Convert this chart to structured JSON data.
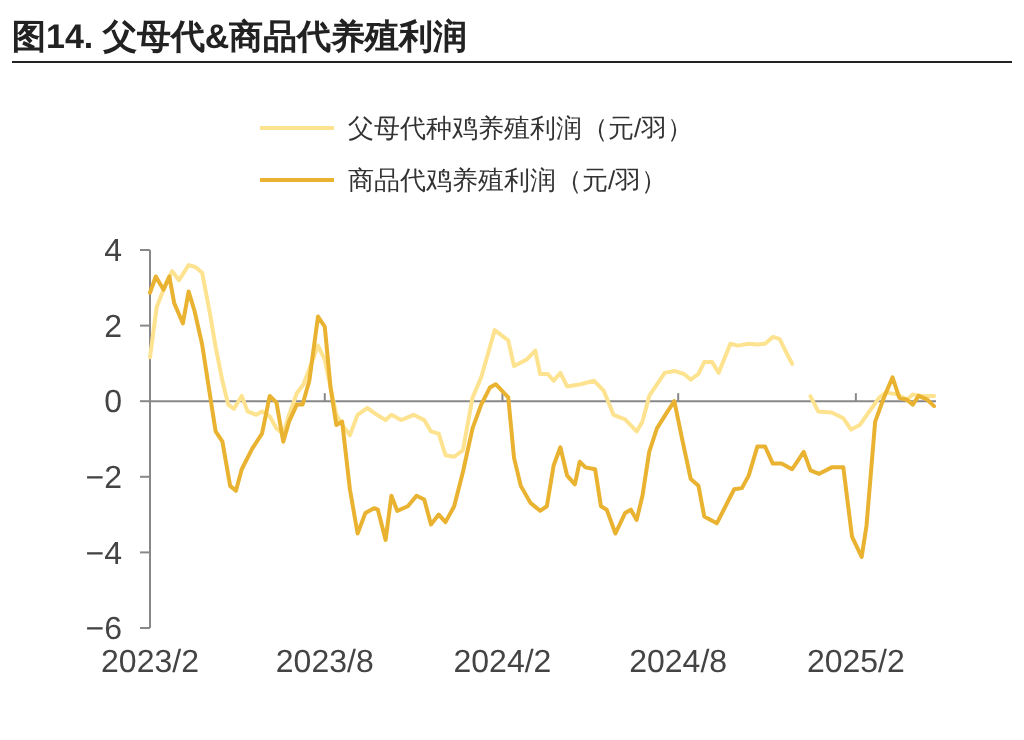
{
  "chart_data": {
    "type": "line",
    "title": "图14. 父母代&商品代养殖利润",
    "legend": "top",
    "xlim": [
      "2023-02-01",
      "2025-04-25"
    ],
    "xticks": [
      {
        "value": "2023-02-01",
        "label": "2023/2"
      },
      {
        "value": "2023-08-01",
        "label": "2023/8"
      },
      {
        "value": "2024-02-01",
        "label": "2024/2"
      },
      {
        "value": "2024-08-01",
        "label": "2024/8"
      },
      {
        "value": "2025-02-01",
        "label": "2025/2"
      }
    ],
    "ylim": [
      -6,
      4
    ],
    "yticks": [
      -6,
      -4,
      -2,
      0,
      2,
      4
    ],
    "series": [
      {
        "name": "父母代种鸡养殖利润（元/羽）",
        "color": "#fde38f",
        "x": [
          "2023-02-01",
          "2023-02-08",
          "2023-02-18",
          "2023-02-24",
          "2023-03-03",
          "2023-03-13",
          "2023-03-20",
          "2023-03-27",
          "2023-04-04",
          "2023-04-10",
          "2023-04-17",
          "2023-04-23",
          "2023-04-29",
          "2023-05-07",
          "2023-05-13",
          "2023-05-22",
          "2023-05-28",
          "2023-06-05",
          "2023-06-12",
          "2023-06-19",
          "2023-06-25",
          "2023-07-03",
          "2023-07-10",
          "2023-07-18",
          "2023-07-25",
          "2023-08-01",
          "2023-08-07",
          "2023-08-13",
          "2023-08-19",
          "2023-08-27",
          "2023-09-04",
          "2023-09-14",
          "2023-09-24",
          "2023-10-03",
          "2023-10-09",
          "2023-10-19",
          "2023-11-01",
          "2023-11-12",
          "2023-11-19",
          "2023-11-27",
          "2023-12-04",
          "2023-12-13",
          "2023-12-22",
          "2024-01-01",
          "2024-01-10",
          "2024-01-24",
          "2024-02-07",
          "2024-02-13",
          "2024-02-26",
          "2024-03-06",
          "2024-03-11",
          "2024-03-19",
          "2024-03-25",
          "2024-04-01",
          "2024-04-08",
          "2024-04-22",
          "2024-05-06",
          "2024-05-16",
          "2024-05-26",
          "2024-06-07",
          "2024-06-19",
          "2024-06-25",
          "2024-07-02",
          "2024-07-18",
          "2024-07-28",
          "2024-08-07",
          "2024-08-14",
          "2024-08-22",
          "2024-08-28",
          "2024-09-05",
          "2024-09-12",
          "2024-09-24",
          "2024-10-02",
          "2024-10-13",
          "2024-10-22",
          "2024-10-30",
          "2024-11-07",
          "2024-11-14",
          "2024-11-20",
          "2024-11-27",
          "2024-12-08",
          "2024-12-16",
          "2024-12-24",
          "2025-01-07",
          "2025-01-19",
          "2025-01-27",
          "2025-02-05",
          "2025-02-15",
          "2025-02-25",
          "2025-03-04",
          "2025-03-16",
          "2025-03-26",
          "2025-04-01",
          "2025-04-10",
          "2025-04-23"
        ],
        "values": [
          1.16,
          2.5,
          3.14,
          3.44,
          3.2,
          3.6,
          3.55,
          3.4,
          2.33,
          1.43,
          0.54,
          -0.09,
          -0.2,
          0.14,
          -0.27,
          -0.36,
          -0.27,
          -0.4,
          -0.72,
          -0.86,
          -0.36,
          0.21,
          0.45,
          0.99,
          1.47,
          1.1,
          0.36,
          -0.36,
          -0.63,
          -0.9,
          -0.36,
          -0.18,
          -0.36,
          -0.5,
          -0.36,
          -0.5,
          -0.36,
          -0.5,
          -0.8,
          -0.86,
          -1.43,
          -1.47,
          -1.3,
          0.09,
          0.63,
          1.88,
          1.61,
          0.93,
          1.1,
          1.34,
          0.72,
          0.72,
          0.54,
          0.75,
          0.39,
          0.45,
          0.54,
          0.27,
          -0.36,
          -0.48,
          -0.8,
          -0.54,
          0.14,
          0.75,
          0.8,
          0.72,
          0.57,
          0.72,
          1.04,
          1.04,
          0.75,
          1.52,
          1.47,
          1.52,
          1.5,
          1.52,
          1.7,
          1.65,
          1.34,
          0.99,
          null,
          0.13,
          -0.27,
          -0.3,
          -0.45,
          -0.75,
          -0.63,
          -0.27,
          0.09,
          0.23,
          0.18,
          0.04,
          0.18,
          0.14,
          0.14
        ]
      },
      {
        "name": "商品代鸡养殖利润（元/羽）",
        "color": "#e9b230",
        "x": [
          "2023-02-01",
          "2023-02-07",
          "2023-02-15",
          "2023-02-21",
          "2023-02-26",
          "2023-03-07",
          "2023-03-13",
          "2023-03-19",
          "2023-03-27",
          "2023-04-04",
          "2023-04-10",
          "2023-04-17",
          "2023-04-25",
          "2023-05-01",
          "2023-05-07",
          "2023-05-18",
          "2023-05-28",
          "2023-06-05",
          "2023-06-12",
          "2023-06-19",
          "2023-06-25",
          "2023-07-03",
          "2023-07-09",
          "2023-07-16",
          "2023-07-25",
          "2023-08-01",
          "2023-08-07",
          "2023-08-13",
          "2023-08-19",
          "2023-08-27",
          "2023-09-04",
          "2023-09-12",
          "2023-09-21",
          "2023-09-25",
          "2023-10-03",
          "2023-10-09",
          "2023-10-15",
          "2023-10-26",
          "2023-11-04",
          "2023-11-12",
          "2023-11-19",
          "2023-11-27",
          "2023-12-04",
          "2023-12-13",
          "2023-12-22",
          "2024-01-01",
          "2024-01-10",
          "2024-01-19",
          "2024-01-25",
          "2024-02-07",
          "2024-02-13",
          "2024-02-20",
          "2024-03-01",
          "2024-03-11",
          "2024-03-18",
          "2024-03-25",
          "2024-04-01",
          "2024-04-08",
          "2024-04-16",
          "2024-04-21",
          "2024-04-27",
          "2024-05-07",
          "2024-05-13",
          "2024-05-19",
          "2024-05-28",
          "2024-06-07",
          "2024-06-13",
          "2024-06-19",
          "2024-06-25",
          "2024-07-02",
          "2024-07-10",
          "2024-07-21",
          "2024-07-28",
          "2024-08-05",
          "2024-08-14",
          "2024-08-22",
          "2024-08-28",
          "2024-09-10",
          "2024-09-19",
          "2024-09-28",
          "2024-10-06",
          "2024-10-13",
          "2024-10-22",
          "2024-10-30",
          "2024-11-07",
          "2024-11-16",
          "2024-11-27",
          "2024-12-09",
          "2024-12-16",
          "2024-12-25",
          "2025-01-07",
          "2025-01-19",
          "2025-01-28",
          "2025-02-07",
          "2025-02-12",
          "2025-02-21",
          "2025-03-02",
          "2025-03-11",
          "2025-03-18",
          "2025-03-26",
          "2025-04-01",
          "2025-04-07",
          "2025-04-16",
          "2025-04-23"
        ],
        "values": [
          2.87,
          3.3,
          2.95,
          3.3,
          2.6,
          2.06,
          2.9,
          2.4,
          1.5,
          0.18,
          -0.8,
          -1.07,
          -2.24,
          -2.37,
          -1.8,
          -1.25,
          -0.86,
          0.14,
          -0.04,
          -1.07,
          -0.54,
          -0.09,
          -0.09,
          0.54,
          2.24,
          1.97,
          0.36,
          -0.63,
          -0.54,
          -2.33,
          -3.5,
          -2.96,
          -2.83,
          -2.87,
          -3.67,
          -2.5,
          -2.9,
          -2.78,
          -2.5,
          -2.6,
          -3.26,
          -3.0,
          -3.2,
          -2.78,
          -1.88,
          -0.72,
          -0.09,
          0.36,
          0.45,
          0.1,
          -1.5,
          -2.24,
          -2.69,
          -2.9,
          -2.78,
          -1.7,
          -1.22,
          -1.97,
          -2.2,
          -1.6,
          -1.75,
          -1.8,
          -2.78,
          -2.87,
          -3.5,
          -2.96,
          -2.87,
          -3.14,
          -2.5,
          -1.34,
          -0.72,
          -0.27,
          0,
          -0.99,
          -2.06,
          -2.24,
          -3.05,
          -3.23,
          -2.78,
          -2.33,
          -2.3,
          -1.97,
          -1.2,
          -1.2,
          -1.65,
          -1.65,
          -1.8,
          -1.34,
          -1.83,
          -1.92,
          -1.75,
          -1.75,
          -3.58,
          -4.12,
          -3.3,
          -0.54,
          0.09,
          0.63,
          0.09,
          0.04,
          -0.09,
          0.14,
          0.04,
          -0.13
        ]
      }
    ]
  }
}
